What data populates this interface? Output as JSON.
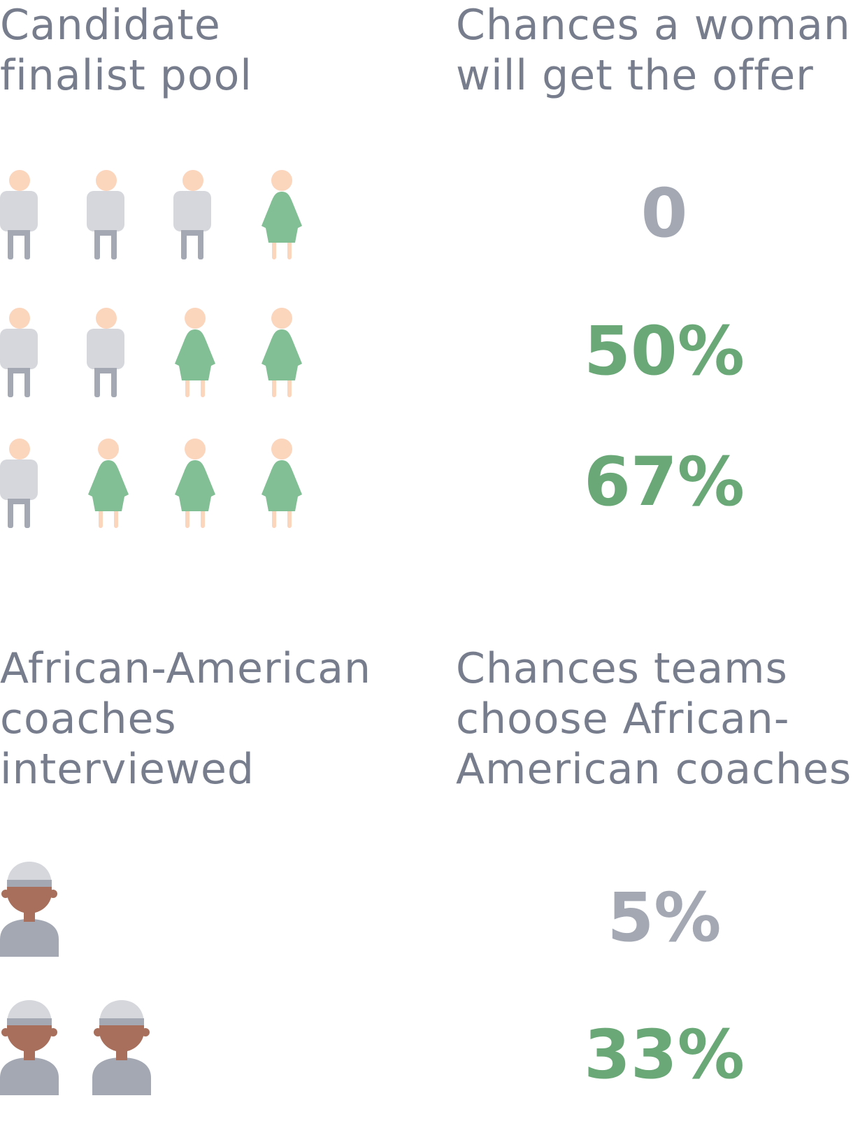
{
  "section1": {
    "left_heading": "Candidate\nfinalist pool",
    "right_heading": "Chances a woman\nwill get the offer",
    "rows": [
      {
        "pool": [
          "man",
          "man",
          "man",
          "woman"
        ],
        "chance": "0",
        "chance_color": "#a3a8b3"
      },
      {
        "pool": [
          "man",
          "man",
          "woman",
          "woman"
        ],
        "chance": "50%",
        "chance_color": "#6aa878"
      },
      {
        "pool": [
          "man",
          "woman",
          "woman",
          "woman"
        ],
        "chance": "67%",
        "chance_color": "#6aa878"
      }
    ]
  },
  "section2": {
    "left_heading": "African-American\ncoaches\ninterviewed",
    "right_heading": "Chances teams\nchoose African-\nAmerican coaches",
    "rows": [
      {
        "coaches": 1,
        "chance": "5%",
        "chance_color": "#a3a8b3"
      },
      {
        "coaches": 2,
        "chance": "33%",
        "chance_color": "#6aa878"
      }
    ]
  },
  "colors": {
    "heading": "#777d8c",
    "man_body": "#d5d7dc",
    "man_legs": "#a3a8b3",
    "woman_dress": "#82bf94",
    "skin_light": "#fcd5bd",
    "skin_dark": "#a8705c",
    "cap": "#d5d7dc",
    "cap_band": "#a3a8b3",
    "shirt": "#a3a8b3"
  },
  "icons": {
    "man": "man-icon",
    "woman": "woman-icon",
    "coach": "coach-icon"
  }
}
